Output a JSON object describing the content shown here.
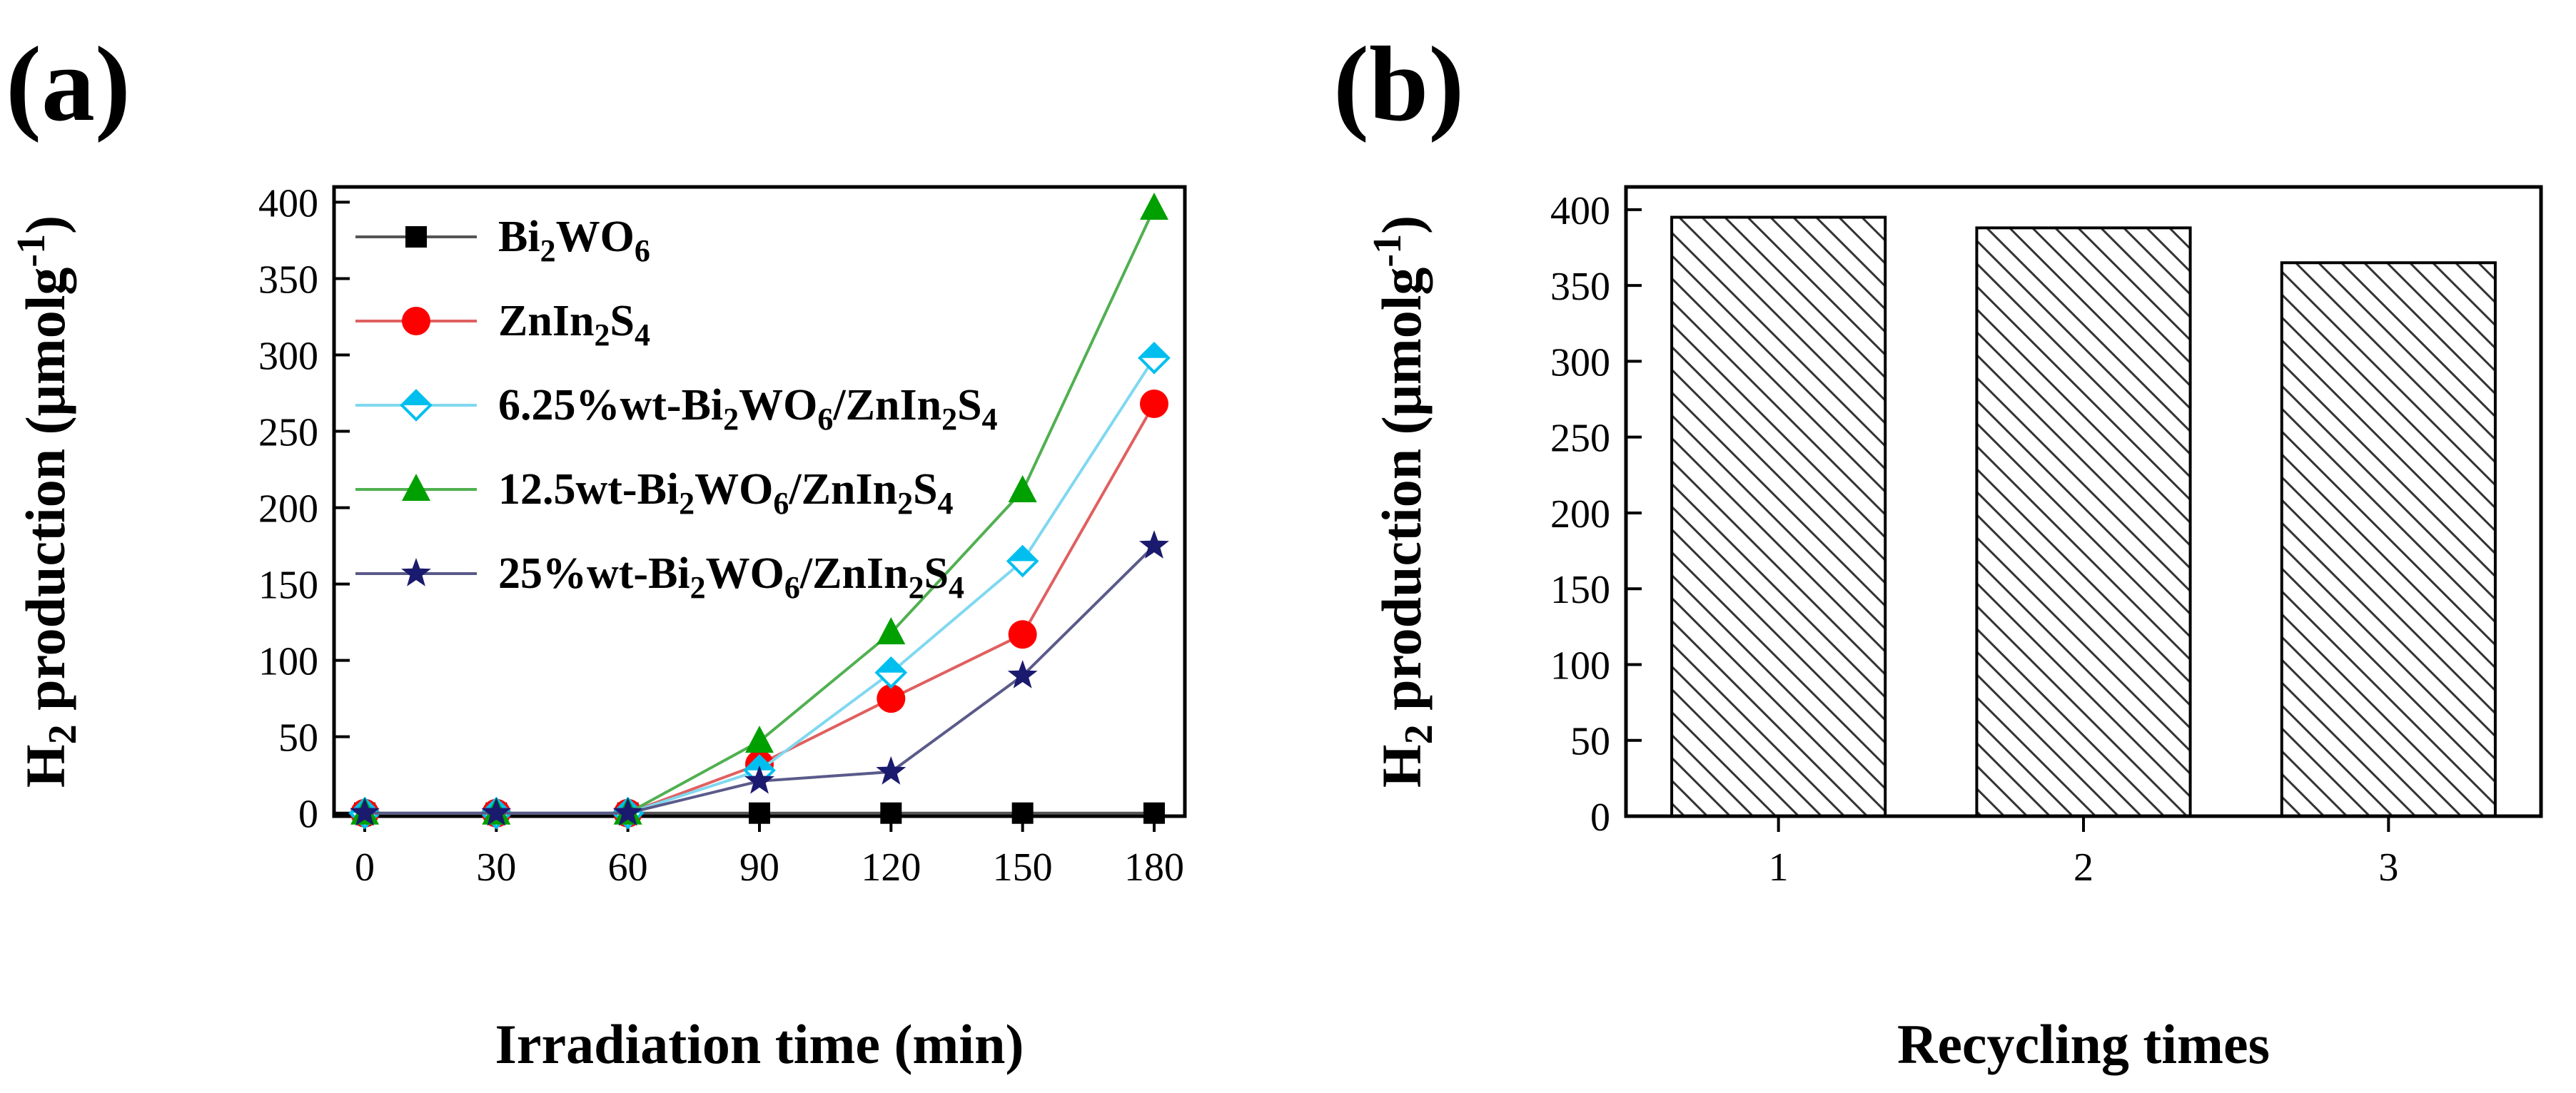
{
  "panels": {
    "a_label": "(a)",
    "b_label": "(b)"
  },
  "chart_data": [
    {
      "type": "line",
      "title": "",
      "xlabel": "Irradiation time (min)",
      "ylabel_main": "H",
      "ylabel_sub": "2",
      "ylabel_text": " production (μmolg",
      "ylabel_sup": "-1",
      "ylabel_close": ")",
      "xlim": [
        -7,
        187
      ],
      "ylim": [
        -2,
        410
      ],
      "x": [
        0,
        30,
        60,
        90,
        120,
        150,
        180
      ],
      "xticks": [
        0,
        30,
        60,
        90,
        120,
        150,
        180
      ],
      "yticks": [
        0,
        50,
        100,
        150,
        200,
        250,
        300,
        350,
        400
      ],
      "legend_position": "top-left",
      "series": [
        {
          "name": "Bi2WO6",
          "legend_parts": [
            [
              "Bi",
              ""
            ],
            [
              "2",
              "sub"
            ],
            [
              "WO",
              ""
            ],
            [
              "6",
              "sub"
            ]
          ],
          "color": "#555555",
          "marker_color": "#000000",
          "marker": "square",
          "values": [
            0,
            0,
            0,
            0,
            0,
            0,
            0
          ]
        },
        {
          "name": "ZnIn2S4",
          "legend_parts": [
            [
              "ZnIn",
              ""
            ],
            [
              "2",
              "sub"
            ],
            [
              "S",
              ""
            ],
            [
              "4",
              "sub"
            ]
          ],
          "color": "#e06060",
          "marker_color": "#ff0000",
          "marker": "circle",
          "values": [
            0,
            0,
            0,
            32,
            75,
            117,
            268
          ]
        },
        {
          "name": "6.25%wt-Bi2WO6/ZnIn2S4",
          "legend_parts": [
            [
              "6.25%wt-Bi",
              ""
            ],
            [
              "2",
              "sub"
            ],
            [
              "WO",
              ""
            ],
            [
              "6",
              "sub"
            ],
            [
              "/ZnIn",
              ""
            ],
            [
              "2",
              "sub"
            ],
            [
              "S",
              ""
            ],
            [
              "4",
              "sub"
            ]
          ],
          "color": "#7fd8f0",
          "marker_color": "#00bfef",
          "marker": "diamond",
          "values": [
            0,
            0,
            0,
            28,
            92,
            165,
            298
          ]
        },
        {
          "name": "12.5wt-Bi2WO6/ZnIn2S4",
          "legend_parts": [
            [
              "12.5wt-Bi",
              ""
            ],
            [
              "2",
              "sub"
            ],
            [
              "WO",
              ""
            ],
            [
              "6",
              "sub"
            ],
            [
              "/ZnIn",
              ""
            ],
            [
              "2",
              "sub"
            ],
            [
              "S",
              ""
            ],
            [
              "4",
              "sub"
            ]
          ],
          "color": "#50b050",
          "marker_color": "#00a000",
          "marker": "triangle",
          "values": [
            0,
            0,
            0,
            47,
            118,
            211,
            396
          ]
        },
        {
          "name": "25%wt-Bi2WO6/ZnIn2S4",
          "legend_parts": [
            [
              "25%wt-Bi",
              ""
            ],
            [
              "2",
              "sub"
            ],
            [
              "WO",
              ""
            ],
            [
              "6",
              "sub"
            ],
            [
              "/ZnIn",
              ""
            ],
            [
              "2",
              "sub"
            ],
            [
              "S",
              ""
            ],
            [
              "4",
              "sub"
            ]
          ],
          "color": "#5a5a8a",
          "marker_color": "#1a1a6e",
          "marker": "star",
          "values": [
            0,
            0,
            0,
            21,
            27,
            90,
            175
          ]
        }
      ]
    },
    {
      "type": "bar",
      "title": "",
      "xlabel": "Recycling times",
      "ylabel_main": "H",
      "ylabel_sub": "2",
      "ylabel_text": " production (μmolg",
      "ylabel_sup": "-1",
      "ylabel_close": ")",
      "categories": [
        "1",
        "2",
        "3"
      ],
      "values": [
        395,
        388,
        365
      ],
      "xlim": [
        0.5,
        3.5
      ],
      "ylim": [
        0,
        415
      ],
      "yticks": [
        0,
        50,
        100,
        150,
        200,
        250,
        300,
        350,
        400
      ],
      "pattern": "diagonal-hatch"
    }
  ]
}
